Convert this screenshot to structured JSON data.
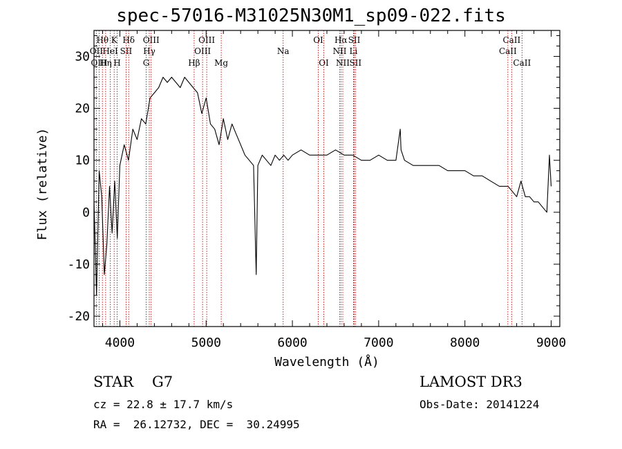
{
  "title": "spec-57016-M31025N30M1_sp09-022.fits",
  "info": {
    "object_class": "STAR",
    "subclass": "G7",
    "cz_text": "cz = 22.8 ± 17.7 km/s",
    "radec_text": "RA =  26.12732, DEC =  30.24995",
    "survey": "LAMOST DR3",
    "obs_date_text": "Obs-Date: 20141224"
  },
  "chart_data": {
    "type": "line",
    "title": "spec-57016-M31025N30M1_sp09-022.fits",
    "xlabel": "Wavelength (Å)",
    "ylabel": "Flux (relative)",
    "xlim": [
      3700,
      9100
    ],
    "ylim": [
      -22,
      35
    ],
    "xticks": [
      4000,
      5000,
      6000,
      7000,
      8000,
      9000
    ],
    "yticks": [
      -20,
      -10,
      0,
      10,
      20,
      30
    ],
    "series": [
      {
        "name": "spectrum",
        "color": "#000000",
        "x": [
          3700,
          3730,
          3760,
          3790,
          3820,
          3850,
          3880,
          3910,
          3940,
          3970,
          4000,
          4050,
          4100,
          4150,
          4200,
          4250,
          4300,
          4350,
          4400,
          4450,
          4500,
          4550,
          4600,
          4650,
          4700,
          4750,
          4800,
          4850,
          4900,
          4950,
          5000,
          5050,
          5100,
          5150,
          5200,
          5250,
          5300,
          5350,
          5400,
          5450,
          5500,
          5550,
          5580,
          5600,
          5650,
          5700,
          5750,
          5800,
          5850,
          5900,
          5950,
          6000,
          6100,
          6200,
          6300,
          6400,
          6500,
          6600,
          6700,
          6800,
          6900,
          7000,
          7100,
          7200,
          7250,
          7260,
          7300,
          7400,
          7500,
          7600,
          7700,
          7800,
          7900,
          8000,
          8100,
          8200,
          8300,
          8400,
          8450,
          8500,
          8550,
          8600,
          8650,
          8700,
          8750,
          8800,
          8850,
          8900,
          8950,
          8980,
          9000
        ],
        "y": [
          2,
          -16,
          8,
          3,
          -12,
          -6,
          5,
          -4,
          6,
          -5,
          9,
          13,
          10,
          16,
          14,
          18,
          17,
          22,
          23,
          24,
          26,
          25,
          26,
          25,
          24,
          26,
          25,
          24,
          23,
          19,
          22,
          17,
          16,
          13,
          18,
          14,
          17,
          15,
          13,
          11,
          10,
          9,
          -12,
          9,
          11,
          10,
          9,
          11,
          10,
          11,
          10,
          11,
          12,
          11,
          11,
          11,
          12,
          11,
          11,
          10,
          10,
          11,
          10,
          10,
          16,
          12,
          10,
          9,
          9,
          9,
          9,
          8,
          8,
          8,
          7,
          7,
          6,
          5,
          5,
          5,
          4,
          3,
          6,
          3,
          3,
          2,
          2,
          1,
          0,
          11,
          5
        ]
      }
    ],
    "lines": [
      {
        "name": "Hθ",
        "wavelength": 3798,
        "row": 0
      },
      {
        "name": "OII",
        "wavelength": 3727,
        "row": 1
      },
      {
        "name": "OIII",
        "wavelength": 3760,
        "row": 2
      },
      {
        "name": "HeI",
        "wavelength": 3889,
        "row": 1
      },
      {
        "name": "Hη",
        "wavelength": 3835,
        "row": 2
      },
      {
        "name": "K",
        "wavelength": 3934,
        "row": 0
      },
      {
        "name": "H",
        "wavelength": 3968,
        "row": 2
      },
      {
        "name": "SII",
        "wavelength": 4072,
        "row": 1
      },
      {
        "name": "Hδ",
        "wavelength": 4102,
        "row": 0
      },
      {
        "name": "OIII",
        "wavelength": 4363,
        "row": 0
      },
      {
        "name": "Hγ",
        "wavelength": 4341,
        "row": 1
      },
      {
        "name": "G",
        "wavelength": 4305,
        "row": 2
      },
      {
        "name": "Hβ",
        "wavelength": 4861,
        "row": 2
      },
      {
        "name": "OIII",
        "wavelength": 4959,
        "row": 1
      },
      {
        "name": "OIII",
        "wavelength": 5007,
        "row": 0
      },
      {
        "name": "Mg",
        "wavelength": 5175,
        "row": 2
      },
      {
        "name": "Na",
        "wavelength": 5893,
        "row": 1
      },
      {
        "name": "OI",
        "wavelength": 6300,
        "row": 0
      },
      {
        "name": "OI",
        "wavelength": 6364,
        "row": 2
      },
      {
        "name": "Hα",
        "wavelength": 6563,
        "row": 0
      },
      {
        "name": "NII",
        "wavelength": 6548,
        "row": 1
      },
      {
        "name": "NII",
        "wavelength": 6584,
        "row": 2
      },
      {
        "name": "SII",
        "wavelength": 6717,
        "row": 0
      },
      {
        "name": "Li",
        "wavelength": 6708,
        "row": 1
      },
      {
        "name": "SII",
        "wavelength": 6731,
        "row": 2
      },
      {
        "name": "CaII",
        "wavelength": 8542,
        "row": 0
      },
      {
        "name": "CaII",
        "wavelength": 8498,
        "row": 1
      },
      {
        "name": "CaII",
        "wavelength": 8662,
        "row": 2
      }
    ],
    "line_color": "#cc0000",
    "spectrum_color": "#000000"
  }
}
